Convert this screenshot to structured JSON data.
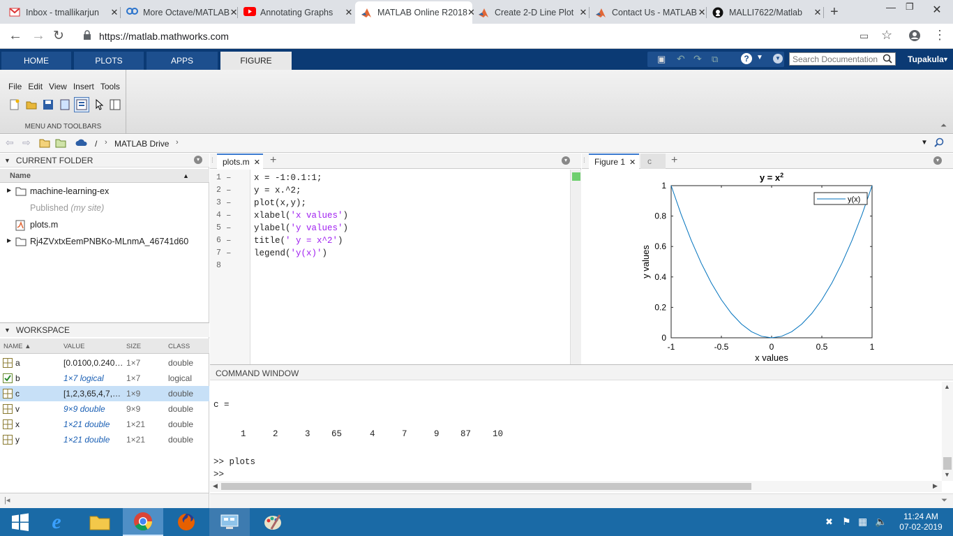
{
  "browser": {
    "tabs": [
      {
        "label": "Inbox - tmallikarjun",
        "icon": "gmail-icon"
      },
      {
        "label": "More Octave/MATLAB",
        "icon": "coursera-icon"
      },
      {
        "label": "Annotating Graphs",
        "icon": "youtube-icon"
      },
      {
        "label": "MATLAB Online R2018",
        "icon": "matlab-icon"
      },
      {
        "label": "Create 2-D Line Plot",
        "icon": "matlab-icon"
      },
      {
        "label": "Contact Us - MATLAB",
        "icon": "matlab-icon"
      },
      {
        "label": "MALLI7622/Matlab",
        "icon": "github-icon"
      }
    ],
    "url": "https://matlab.mathworks.com"
  },
  "toolstrip": {
    "tabs": [
      "HOME",
      "PLOTS",
      "APPS",
      "FIGURE"
    ],
    "search_placeholder": "Search Documentation",
    "user": "Tupakula",
    "menus": [
      "File",
      "Edit",
      "View",
      "Insert",
      "Tools"
    ],
    "section_label": "MENU AND TOOLBARS"
  },
  "path": {
    "root": "/",
    "folder": "MATLAB Drive"
  },
  "current_folder": {
    "title": "CURRENT FOLDER",
    "col_name": "Name",
    "items": [
      {
        "name": "machine-learning-ex",
        "type": "folder"
      },
      {
        "name": "Published",
        "suffix": "(my site)",
        "type": "published"
      },
      {
        "name": "plots.m",
        "type": "file"
      },
      {
        "name": "Rj4ZVxtxEemPNBKo-MLnmA_46741d60",
        "type": "folder"
      }
    ]
  },
  "workspace": {
    "title": "WORKSPACE",
    "cols": [
      "NAME ▲",
      "VALUE",
      "SIZE",
      "CLASS"
    ],
    "rows": [
      {
        "name": "a",
        "value": "[0.0100,0.240…",
        "size": "1×7",
        "class": "double",
        "italic": false,
        "selected": false
      },
      {
        "name": "b",
        "value": "1×7 logical",
        "size": "1×7",
        "class": "logical",
        "italic": true,
        "selected": false
      },
      {
        "name": "c",
        "value": "[1,2,3,65,4,7,…",
        "size": "1×9",
        "class": "double",
        "italic": false,
        "selected": true
      },
      {
        "name": "v",
        "value": "9×9 double",
        "size": "9×9",
        "class": "double",
        "italic": true,
        "selected": false
      },
      {
        "name": "x",
        "value": "1×21 double",
        "size": "1×21",
        "class": "double",
        "italic": true,
        "selected": false
      },
      {
        "name": "y",
        "value": "1×21 double",
        "size": "1×21",
        "class": "double",
        "italic": true,
        "selected": false
      }
    ]
  },
  "editor": {
    "tab": "plots.m",
    "lines": [
      {
        "n": "1",
        "code": "x = -1:0.1:1;"
      },
      {
        "n": "2",
        "code": "y = x.^2;"
      },
      {
        "n": "3",
        "code": "plot(x,y);"
      },
      {
        "n": "4",
        "pre": "xlabel(",
        "str": "'x values'",
        "post": ")"
      },
      {
        "n": "5",
        "pre": "ylabel(",
        "str": "'y values'",
        "post": ")"
      },
      {
        "n": "6",
        "pre": "title(",
        "str": "' y = x^2'",
        "post": ")"
      },
      {
        "n": "7",
        "pre": "legend(",
        "str": "'y(x)'",
        "post": ")"
      },
      {
        "n": "8",
        "code": ""
      }
    ]
  },
  "figure": {
    "tab": "Figure 1",
    "tab2": "c"
  },
  "chart_data": {
    "type": "line",
    "title": "y = x",
    "title_sup": "2",
    "xlabel": "x values",
    "ylabel": "y values",
    "xlim": [
      -1,
      1
    ],
    "ylim": [
      0,
      1
    ],
    "xticks": [
      "-1",
      "-0.5",
      "0",
      "0.5",
      "1"
    ],
    "yticks": [
      "0",
      "0.2",
      "0.4",
      "0.6",
      "0.8",
      "1"
    ],
    "legend": "top-right",
    "series": [
      {
        "name": "y(x)",
        "color": "#0072bd",
        "x": [
          -1,
          -0.9,
          -0.8,
          -0.7,
          -0.6,
          -0.5,
          -0.4,
          -0.3,
          -0.2,
          -0.1,
          0,
          0.1,
          0.2,
          0.3,
          0.4,
          0.5,
          0.6,
          0.7,
          0.8,
          0.9,
          1
        ],
        "y": [
          1,
          0.81,
          0.64,
          0.49,
          0.36,
          0.25,
          0.16,
          0.09,
          0.04,
          0.01,
          0,
          0.01,
          0.04,
          0.09,
          0.16,
          0.25,
          0.36,
          0.49,
          0.64,
          0.81,
          1
        ]
      }
    ]
  },
  "command": {
    "title": "COMMAND WINDOW",
    "var": "c =",
    "values": [
      "1",
      "2",
      "3",
      "65",
      "4",
      "7",
      "9",
      "87",
      "10"
    ],
    "cmd": ">> plots",
    "prompt": ">>"
  },
  "taskbar": {
    "time": "11:24 AM",
    "date": "07-02-2019"
  }
}
